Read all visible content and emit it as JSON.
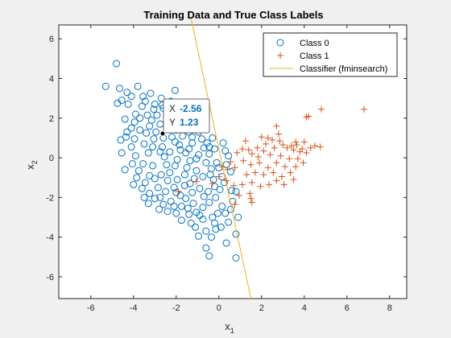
{
  "window": {
    "background": "#f0f0f0"
  },
  "chart_data": {
    "type": "scatter",
    "title": "Training Data and True Class Labels",
    "xlabel_main": "x",
    "xlabel_sub": "1",
    "ylabel_main": "x",
    "ylabel_sub": "2",
    "xlim": [
      -7.5,
      8.8
    ],
    "ylim": [
      -7.1,
      6.7
    ],
    "xticks": [
      -6,
      -4,
      -2,
      0,
      2,
      4,
      6,
      8
    ],
    "yticks": [
      -6,
      -4,
      -2,
      0,
      2,
      4,
      6
    ],
    "grid": false,
    "legend_position": "top-right",
    "colors": {
      "class0": "#0072bd",
      "class1": "#d95319",
      "classifier": "#edb120",
      "datatip_value": "#0072bd"
    },
    "legend": [
      "Class 0",
      "Class 1",
      "Classifier (fminsearch)"
    ],
    "classifier_line": {
      "x": [
        -1.3,
        1.5
      ],
      "y": [
        7.0,
        -7.1
      ]
    },
    "datatip": {
      "x_label": "X",
      "y_label": "Y",
      "x_value": "-2.56",
      "y_value": "1.23",
      "point": [
        -2.56,
        1.23
      ]
    },
    "series": [
      {
        "name": "Class 0",
        "marker": "circle",
        "points": [
          [
            -4.8,
            4.75
          ],
          [
            -5.3,
            3.6
          ],
          [
            -4.65,
            3.5
          ],
          [
            -4.55,
            2.9
          ],
          [
            -4.75,
            2.75
          ],
          [
            -4.3,
            3.3
          ],
          [
            -4.1,
            3.1
          ],
          [
            -3.55,
            3.1
          ],
          [
            -3.8,
            3.6
          ],
          [
            -3.2,
            3.25
          ],
          [
            -2.7,
            3.0
          ],
          [
            -2.25,
            2.85
          ],
          [
            -2.05,
            3.4
          ],
          [
            -2.6,
            2.5
          ],
          [
            -3.9,
            2.2
          ],
          [
            -4.4,
            1.95
          ],
          [
            -4.1,
            1.5
          ],
          [
            -4.35,
            1.05
          ],
          [
            -4.6,
            0.9
          ],
          [
            -3.7,
            1.4
          ],
          [
            -3.35,
            2.15
          ],
          [
            -4.25,
            2.7
          ],
          [
            -3.0,
            2.7
          ],
          [
            -1.6,
            2.6
          ],
          [
            -1.3,
            1.95
          ],
          [
            -1.05,
            2.3
          ],
          [
            -1.4,
            1.3
          ],
          [
            -0.95,
            1.3
          ],
          [
            -0.7,
            0.5
          ],
          [
            -0.45,
            0.2
          ],
          [
            -0.2,
            0.45
          ],
          [
            -0.1,
            -0.25
          ],
          [
            0.3,
            0.35
          ],
          [
            0.45,
            0.1
          ],
          [
            0.0,
            -0.5
          ],
          [
            -0.4,
            -0.85
          ],
          [
            0.35,
            -0.35
          ],
          [
            0.55,
            -0.7
          ],
          [
            0.25,
            -1.25
          ],
          [
            0.6,
            -1.65
          ],
          [
            0.8,
            -1.7
          ],
          [
            0.65,
            -2.2
          ],
          [
            -0.15,
            -2.0
          ],
          [
            0.3,
            -2.8
          ],
          [
            0.15,
            -2.45
          ],
          [
            0.55,
            -2.6
          ],
          [
            0.9,
            -3.0
          ],
          [
            0.45,
            -3.25
          ],
          [
            -0.2,
            -3.3
          ],
          [
            -0.6,
            -3.7
          ],
          [
            -0.35,
            -4.0
          ],
          [
            -0.6,
            -4.55
          ],
          [
            0.8,
            -3.85
          ],
          [
            -0.45,
            -4.95
          ],
          [
            0.8,
            -5.05
          ],
          [
            -0.05,
            -2.8
          ],
          [
            -0.9,
            -2.9
          ],
          [
            -1.4,
            -2.85
          ],
          [
            -1.75,
            -2.45
          ],
          [
            -2.25,
            -2.2
          ],
          [
            -2.6,
            -2.35
          ],
          [
            -2.75,
            -2.0
          ],
          [
            -3.25,
            -1.8
          ],
          [
            -3.45,
            -1.25
          ],
          [
            -3.0,
            -1.05
          ],
          [
            -3.75,
            -0.65
          ],
          [
            -3.55,
            -0.3
          ],
          [
            -3.9,
            0.1
          ],
          [
            -4.1,
            0.55
          ],
          [
            -3.05,
            0.95
          ],
          [
            -1.1,
            -3.5
          ],
          [
            -1.75,
            -3.15
          ],
          [
            -2.4,
            -2.7
          ],
          [
            -3.3,
            -2.3
          ],
          [
            -2.1,
            -1.5
          ],
          [
            -1.35,
            -1.3
          ],
          [
            -0.9,
            -1.55
          ],
          [
            -0.5,
            -1.7
          ],
          [
            -1.05,
            -0.65
          ],
          [
            -1.6,
            -0.85
          ],
          [
            -2.05,
            -0.4
          ],
          [
            -2.7,
            -0.85
          ],
          [
            -2.3,
            0.3
          ],
          [
            -1.85,
            0.65
          ],
          [
            -1.25,
            0.75
          ],
          [
            -0.95,
            0.15
          ],
          [
            -1.55,
            0.25
          ],
          [
            -2.2,
            1.05
          ],
          [
            -2.75,
            1.7
          ],
          [
            -3.25,
            1.6
          ],
          [
            -2.9,
            2.15
          ],
          [
            -2.35,
            2.05
          ],
          [
            -1.85,
            1.85
          ],
          [
            -1.55,
            1.5
          ],
          [
            -2.0,
            1.4
          ],
          [
            -2.6,
            1.0
          ],
          [
            -3.1,
            0.55
          ],
          [
            -2.55,
            0.05
          ],
          [
            -3.1,
            -0.4
          ],
          [
            -2.4,
            -1.15
          ],
          [
            -1.8,
            -1.9
          ],
          [
            -1.2,
            -2.3
          ],
          [
            -0.75,
            -2.5
          ],
          [
            -0.45,
            -2.25
          ],
          [
            -1.95,
            -0.1
          ],
          [
            -0.8,
            0.95
          ],
          [
            -1.15,
            1.6
          ],
          [
            -0.6,
            -0.25
          ],
          [
            -1.35,
            -0.15
          ],
          [
            -2.95,
            1.3
          ],
          [
            -3.5,
            0.7
          ],
          [
            -3.25,
            -0.9
          ],
          [
            -2.85,
            -1.5
          ],
          [
            -2.1,
            -2.45
          ],
          [
            -1.55,
            -2.05
          ],
          [
            -0.3,
            -3.0
          ],
          [
            0.1,
            -3.5
          ],
          [
            -0.75,
            -3.1
          ],
          [
            -3.6,
            2.6
          ],
          [
            -3.95,
            1.8
          ],
          [
            -4.3,
            1.3
          ],
          [
            -1.9,
            2.35
          ],
          [
            -2.15,
            2.6
          ],
          [
            -2.45,
            1.55
          ],
          [
            -1.7,
            1.1
          ],
          [
            -1.4,
            0.45
          ],
          [
            -1.05,
            -0.05
          ],
          [
            -0.75,
            -0.95
          ],
          [
            -1.25,
            -1.75
          ],
          [
            -1.6,
            -1.4
          ],
          [
            -2.5,
            -1.7
          ],
          [
            -3.0,
            -2.05
          ],
          [
            -3.6,
            -1.55
          ],
          [
            -3.85,
            -1.0
          ],
          [
            -4.05,
            -0.3
          ],
          [
            -3.3,
            0.25
          ],
          [
            -2.65,
            0.55
          ],
          [
            -2.05,
            0.8
          ],
          [
            -1.5,
            -0.5
          ],
          [
            -0.25,
            -1.1
          ],
          [
            -0.55,
            0.75
          ],
          [
            -2.3,
            -0.75
          ],
          [
            -1.95,
            -1.1
          ],
          [
            -2.75,
            0.3
          ],
          [
            -3.4,
            1.25
          ],
          [
            -2.25,
            1.7
          ],
          [
            -1.25,
            1.05
          ],
          [
            -0.35,
            -0.55
          ],
          [
            0.15,
            -0.95
          ],
          [
            0.05,
            -1.6
          ],
          [
            -0.2,
            -1.45
          ],
          [
            -0.7,
            -1.95
          ],
          [
            -1.05,
            -2.75
          ],
          [
            -1.45,
            -2.55
          ],
          [
            -2.0,
            -2.8
          ],
          [
            -0.15,
            -3.6
          ],
          [
            0.35,
            -4.3
          ],
          [
            -0.95,
            -3.95
          ],
          [
            -1.3,
            -3.3
          ],
          [
            -2.8,
            -2.6
          ],
          [
            -3.5,
            -2.0
          ],
          [
            -4.0,
            -1.35
          ],
          [
            -4.4,
            -0.6
          ],
          [
            -4.55,
            0.25
          ],
          [
            -3.95,
            0.95
          ],
          [
            -3.7,
            2.0
          ],
          [
            -3.05,
            2.45
          ],
          [
            -2.45,
            2.3
          ],
          [
            -1.65,
            2.05
          ],
          [
            -1.8,
            0.4
          ],
          [
            -2.45,
            -0.35
          ],
          [
            -2.0,
            -1.75
          ],
          [
            -1.15,
            -1.05
          ],
          [
            -0.45,
            0.55
          ],
          [
            0.2,
            0.75
          ],
          [
            -3.45,
            2.85
          ],
          [
            -3.15,
            1.9
          ],
          [
            -2.65,
            2.65
          ],
          [
            -1.35,
            2.35
          ],
          [
            -1.05,
            1.85
          ],
          [
            -0.75,
            1.55
          ],
          [
            -0.3,
            1.0
          ]
        ]
      },
      {
        "name": "Class 1",
        "marker": "plus",
        "points": [
          [
            6.8,
            2.45
          ],
          [
            4.8,
            2.45
          ],
          [
            4.2,
            2.1
          ],
          [
            4.1,
            2.05
          ],
          [
            2.7,
            1.6
          ],
          [
            2.8,
            1.2
          ],
          [
            3.6,
            0.8
          ],
          [
            3.2,
            0.5
          ],
          [
            3.5,
            0.4
          ],
          [
            4.0,
            0.8
          ],
          [
            4.3,
            0.5
          ],
          [
            4.75,
            0.55
          ],
          [
            4.1,
            0.25
          ],
          [
            3.8,
            0.3
          ],
          [
            3.4,
            0.6
          ],
          [
            3.0,
            0.65
          ],
          [
            2.6,
            0.5
          ],
          [
            2.2,
            0.7
          ],
          [
            2.1,
            0.35
          ],
          [
            1.8,
            0.5
          ],
          [
            1.4,
            0.4
          ],
          [
            1.1,
            0.45
          ],
          [
            0.85,
            0.25
          ],
          [
            1.55,
            0.2
          ],
          [
            2.4,
            0.15
          ],
          [
            2.9,
            0.1
          ],
          [
            3.3,
            -0.05
          ],
          [
            3.7,
            -0.05
          ],
          [
            3.95,
            -0.25
          ],
          [
            3.6,
            -0.45
          ],
          [
            3.1,
            -0.45
          ],
          [
            2.7,
            -0.25
          ],
          [
            2.3,
            -0.5
          ],
          [
            1.9,
            -0.25
          ],
          [
            1.5,
            -0.35
          ],
          [
            1.15,
            -0.15
          ],
          [
            0.75,
            -0.5
          ],
          [
            0.4,
            -0.6
          ],
          [
            0.15,
            -0.45
          ],
          [
            0.55,
            -0.2
          ],
          [
            1.3,
            -0.85
          ],
          [
            1.7,
            -0.75
          ],
          [
            2.1,
            -0.85
          ],
          [
            2.55,
            -0.75
          ],
          [
            2.95,
            -0.95
          ],
          [
            3.35,
            -0.75
          ],
          [
            3.5,
            -1.1
          ],
          [
            3.05,
            -1.35
          ],
          [
            2.7,
            -1.15
          ],
          [
            2.35,
            -1.35
          ],
          [
            1.95,
            -1.45
          ],
          [
            1.55,
            -1.25
          ],
          [
            1.1,
            -1.35
          ],
          [
            0.7,
            -1.4
          ],
          [
            0.35,
            -1.15
          ],
          [
            0.0,
            -0.95
          ],
          [
            -0.3,
            -1.3
          ],
          [
            0.95,
            -1.9
          ],
          [
            1.45,
            -1.8
          ],
          [
            1.5,
            -2.05
          ],
          [
            1.55,
            -2.25
          ],
          [
            0.75,
            -2.35
          ],
          [
            -1.05,
            -1.2
          ],
          [
            -1.9,
            -1.7
          ],
          [
            2.3,
            1.0
          ],
          [
            1.85,
            0.05
          ],
          [
            1.25,
            0.85
          ],
          [
            2.0,
            1.05
          ],
          [
            2.5,
            0.9
          ],
          [
            2.85,
            0.85
          ],
          [
            4.5,
            0.6
          ],
          [
            3.65,
            0.65
          ],
          [
            3.9,
            0.45
          ]
        ]
      }
    ]
  }
}
